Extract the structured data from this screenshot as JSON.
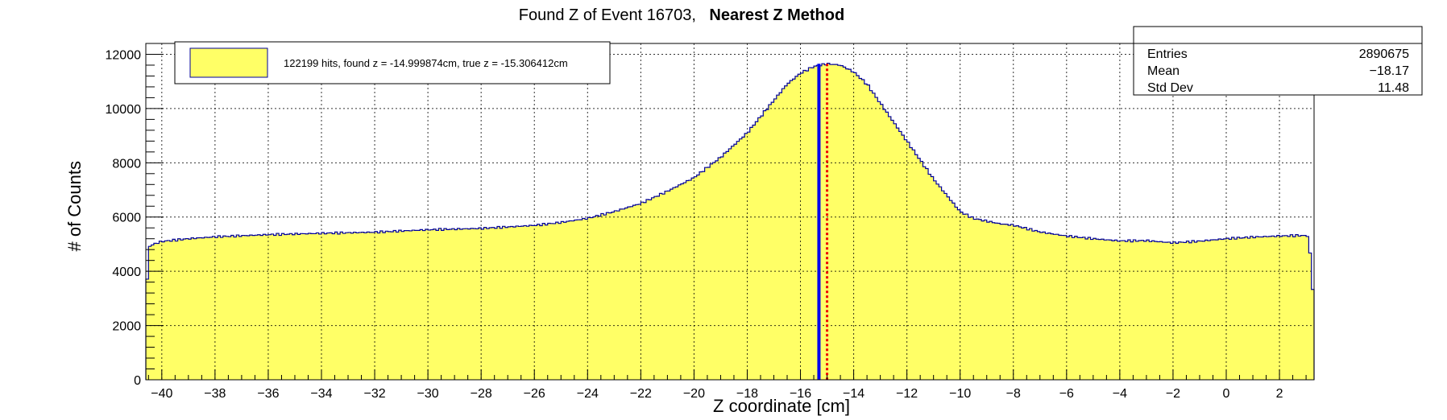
{
  "chart_data": {
    "type": "bar",
    "title": "Found Z of Event 16703,",
    "title_bold": "Nearest Z Method",
    "xlabel": "Z coordinate [cm]",
    "ylabel": "# of Counts",
    "xlim": [
      -40.6,
      3.3
    ],
    "ylim": [
      0,
      12400
    ],
    "grid": true,
    "xticks": [
      -40,
      -38,
      -36,
      -34,
      -32,
      -30,
      -28,
      -26,
      -24,
      -22,
      -20,
      -18,
      -16,
      -14,
      -12,
      -10,
      -8,
      -6,
      -4,
      -2,
      0,
      2
    ],
    "yticks": [
      0,
      2000,
      4000,
      6000,
      8000,
      10000,
      12000
    ],
    "fill_color": "#ffff66",
    "line_color": "#000099",
    "profile": {
      "x": [
        -40.6,
        -40.5,
        -40.3,
        -40.0,
        -39.0,
        -38.0,
        -36.0,
        -34.0,
        -32.0,
        -30.0,
        -28.0,
        -26.0,
        -25.0,
        -24.0,
        -23.0,
        -22.0,
        -21.0,
        -20.0,
        -19.0,
        -18.0,
        -17.5,
        -17.0,
        -16.5,
        -16.0,
        -15.5,
        -15.0,
        -14.5,
        -14.0,
        -13.5,
        -13.0,
        -12.5,
        -12.0,
        -11.5,
        -11.0,
        -10.5,
        -10.0,
        -9.5,
        -9.0,
        -8.5,
        -8.0,
        -7.0,
        -6.0,
        -5.0,
        -4.0,
        -3.0,
        -2.0,
        -1.0,
        0.0,
        1.0,
        2.0,
        2.8,
        3.1,
        3.3
      ],
      "y": [
        2500,
        4900,
        5000,
        5100,
        5200,
        5270,
        5350,
        5400,
        5440,
        5530,
        5580,
        5690,
        5800,
        5950,
        6200,
        6500,
        6950,
        7450,
        8200,
        9100,
        9700,
        10300,
        10900,
        11300,
        11550,
        11650,
        11600,
        11350,
        10900,
        10200,
        9500,
        8800,
        8100,
        7400,
        6800,
        6200,
        5950,
        5850,
        5750,
        5700,
        5450,
        5300,
        5200,
        5120,
        5130,
        5050,
        5110,
        5200,
        5260,
        5300,
        5320,
        5300,
        2700
      ]
    },
    "vlines": [
      {
        "x": -15.306412,
        "color": "#0000ee",
        "style": "solid"
      },
      {
        "x": -14.999874,
        "color": "#ee0000",
        "style": "dotted"
      }
    ],
    "legend": {
      "placement": "top-left",
      "label": "122199 hits, found z = -14.999874cm, true z = -15.306412cm"
    },
    "stats": {
      "placement": "top-right",
      "rows": [
        {
          "label": "Entries",
          "value": "2890675"
        },
        {
          "label": "Mean",
          "value": "−18.17"
        },
        {
          "label": "Std Dev",
          "value": "11.48"
        }
      ]
    }
  }
}
